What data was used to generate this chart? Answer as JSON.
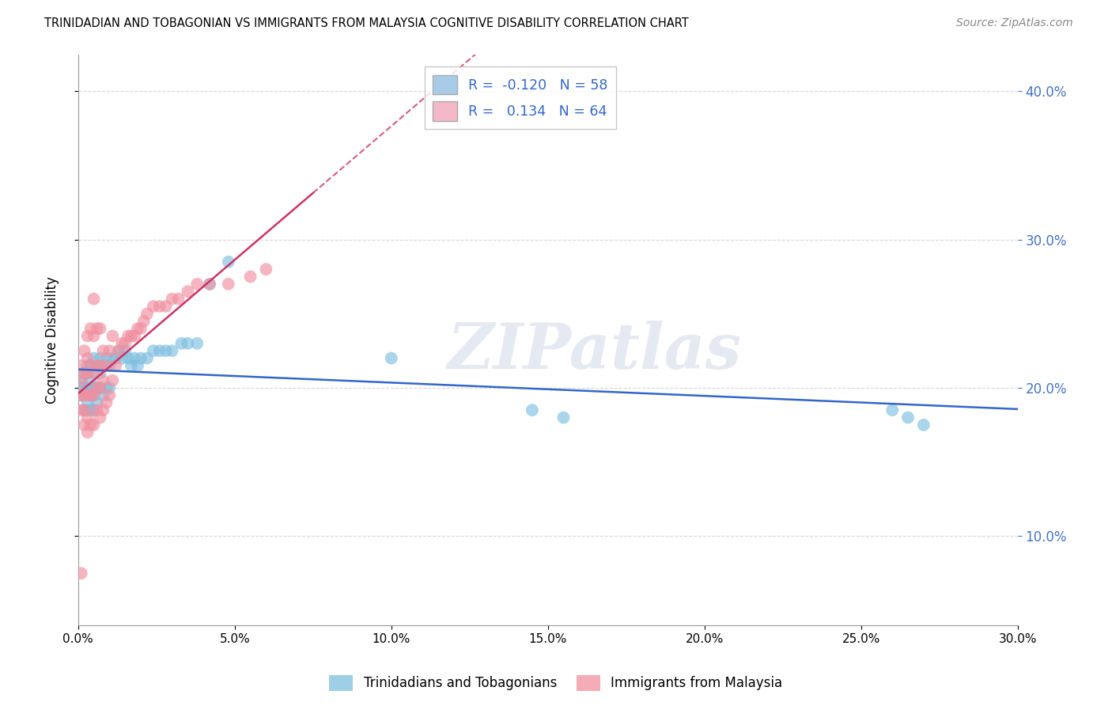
{
  "title": "TRINIDADIAN AND TOBAGONIAN VS IMMIGRANTS FROM MALAYSIA COGNITIVE DISABILITY CORRELATION CHART",
  "source": "Source: ZipAtlas.com",
  "ylabel": "Cognitive Disability",
  "series1_name": "Trinidadians and Tobagonians",
  "series2_name": "Immigrants from Malaysia",
  "series1_color": "#7fbfdf",
  "series2_color": "#f090a0",
  "series1_legend_color": "#a8cce8",
  "series2_legend_color": "#f4b8c8",
  "series1_line_color": "#3366cc",
  "series2_line_color": "#cc3366",
  "grid_color": "#cccccc",
  "background_color": "#ffffff",
  "xmin": 0.0,
  "xmax": 0.3,
  "ymin": 0.04,
  "ymax": 0.425,
  "R1": -0.12,
  "N1": 58,
  "R2": 0.134,
  "N2": 64,
  "watermark": "ZIPatlas",
  "s1_x": [
    0.001,
    0.001,
    0.001,
    0.002,
    0.002,
    0.002,
    0.002,
    0.003,
    0.003,
    0.003,
    0.003,
    0.003,
    0.004,
    0.004,
    0.004,
    0.004,
    0.005,
    0.005,
    0.005,
    0.005,
    0.006,
    0.006,
    0.006,
    0.007,
    0.007,
    0.007,
    0.008,
    0.008,
    0.009,
    0.009,
    0.01,
    0.01,
    0.011,
    0.012,
    0.013,
    0.014,
    0.015,
    0.016,
    0.017,
    0.018,
    0.019,
    0.02,
    0.022,
    0.024,
    0.026,
    0.028,
    0.03,
    0.033,
    0.035,
    0.038,
    0.042,
    0.048,
    0.1,
    0.145,
    0.155,
    0.26,
    0.265,
    0.27
  ],
  "s1_y": [
    0.195,
    0.2,
    0.205,
    0.185,
    0.195,
    0.2,
    0.21,
    0.185,
    0.19,
    0.2,
    0.21,
    0.215,
    0.185,
    0.195,
    0.205,
    0.215,
    0.185,
    0.195,
    0.2,
    0.22,
    0.19,
    0.2,
    0.215,
    0.2,
    0.21,
    0.22,
    0.195,
    0.215,
    0.2,
    0.22,
    0.2,
    0.215,
    0.22,
    0.22,
    0.225,
    0.22,
    0.225,
    0.22,
    0.215,
    0.22,
    0.215,
    0.22,
    0.22,
    0.225,
    0.225,
    0.225,
    0.225,
    0.23,
    0.23,
    0.23,
    0.27,
    0.285,
    0.22,
    0.185,
    0.18,
    0.185,
    0.18,
    0.175
  ],
  "s2_x": [
    0.001,
    0.001,
    0.001,
    0.001,
    0.002,
    0.002,
    0.002,
    0.002,
    0.002,
    0.003,
    0.003,
    0.003,
    0.003,
    0.003,
    0.003,
    0.004,
    0.004,
    0.004,
    0.004,
    0.005,
    0.005,
    0.005,
    0.005,
    0.005,
    0.006,
    0.006,
    0.006,
    0.006,
    0.007,
    0.007,
    0.007,
    0.007,
    0.008,
    0.008,
    0.008,
    0.009,
    0.009,
    0.01,
    0.01,
    0.011,
    0.011,
    0.012,
    0.013,
    0.014,
    0.015,
    0.016,
    0.017,
    0.018,
    0.019,
    0.02,
    0.021,
    0.022,
    0.024,
    0.026,
    0.028,
    0.03,
    0.032,
    0.035,
    0.038,
    0.042,
    0.048,
    0.055,
    0.06,
    0.001
  ],
  "s2_y": [
    0.185,
    0.195,
    0.205,
    0.215,
    0.175,
    0.185,
    0.195,
    0.21,
    0.225,
    0.17,
    0.18,
    0.195,
    0.21,
    0.22,
    0.235,
    0.175,
    0.195,
    0.215,
    0.24,
    0.175,
    0.195,
    0.21,
    0.235,
    0.26,
    0.185,
    0.2,
    0.215,
    0.24,
    0.18,
    0.2,
    0.215,
    0.24,
    0.185,
    0.205,
    0.225,
    0.19,
    0.215,
    0.195,
    0.225,
    0.205,
    0.235,
    0.215,
    0.225,
    0.23,
    0.23,
    0.235,
    0.235,
    0.235,
    0.24,
    0.24,
    0.245,
    0.25,
    0.255,
    0.255,
    0.255,
    0.26,
    0.26,
    0.265,
    0.27,
    0.27,
    0.27,
    0.275,
    0.28,
    0.075
  ]
}
